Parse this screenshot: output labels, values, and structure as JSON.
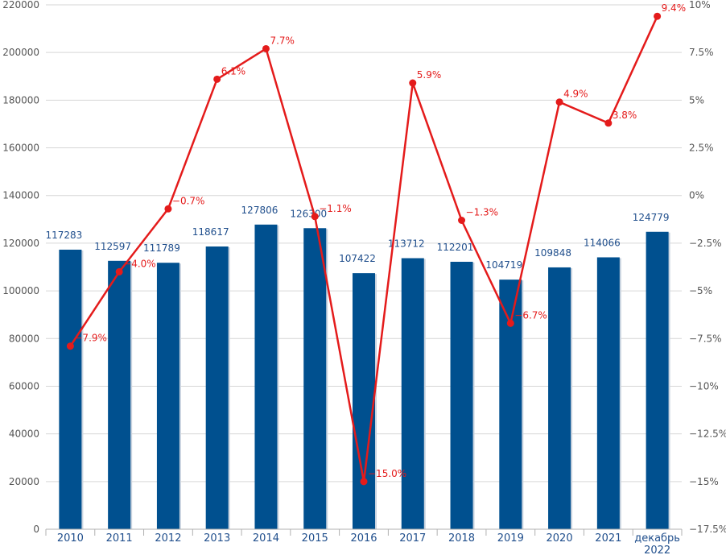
{
  "chart_data": {
    "type": "bar+line",
    "categories": [
      "2010",
      "2011",
      "2012",
      "2013",
      "2014",
      "2015",
      "2016",
      "2017",
      "2018",
      "2019",
      "2020",
      "2021",
      [
        "декабрь",
        "2022"
      ]
    ],
    "series": [
      {
        "name": "bars",
        "type": "bar",
        "axis": "left",
        "color": "#00508f",
        "values": [
          117283,
          112597,
          111789,
          118617,
          127806,
          126300,
          107422,
          113712,
          112201,
          104719,
          109848,
          114066,
          124779
        ],
        "labels": [
          "117283",
          "112597",
          "111789",
          "118617",
          "127806",
          "126300",
          "107422",
          "113712",
          "112201",
          "104719",
          "109848",
          "114066",
          "124779"
        ]
      },
      {
        "name": "change",
        "type": "line",
        "axis": "right",
        "color": "#e41b1b",
        "values": [
          -7.9,
          -4.0,
          -0.7,
          6.1,
          7.7,
          -1.1,
          -15.0,
          5.9,
          -1.3,
          -6.7,
          4.9,
          3.8,
          9.4
        ],
        "labels": [
          "−7.9%",
          "−4.0%",
          "−0.7%",
          "6.1%",
          "7.7%",
          "−1.1%",
          "−15.0%",
          "5.9%",
          "−1.3%",
          "−6.7%",
          "4.9%",
          "3.8%",
          "9.4%"
        ]
      }
    ],
    "left_axis": {
      "ylim": [
        0,
        220000
      ],
      "ticks": [
        0,
        20000,
        40000,
        60000,
        80000,
        100000,
        120000,
        140000,
        160000,
        180000,
        200000,
        220000
      ],
      "tick_labels": [
        "0",
        "20000",
        "40000",
        "60000",
        "80000",
        "100000",
        "120000",
        "140000",
        "160000",
        "180000",
        "200000",
        "220000"
      ]
    },
    "right_axis": {
      "ylim": [
        -17.5,
        10
      ],
      "ticks": [
        -17.5,
        -15,
        -12.5,
        -10,
        -7.5,
        -5,
        -2.5,
        0,
        2.5,
        5,
        7.5,
        10
      ],
      "tick_labels": [
        "−17.5%",
        "−15%",
        "−12.5%",
        "−10%",
        "−7.5%",
        "−5%",
        "−2.5%",
        "0%",
        "2.5%",
        "5%",
        "7.5%",
        "10%"
      ]
    },
    "grid": true,
    "title": "",
    "xlabel": "",
    "ylabel": ""
  }
}
